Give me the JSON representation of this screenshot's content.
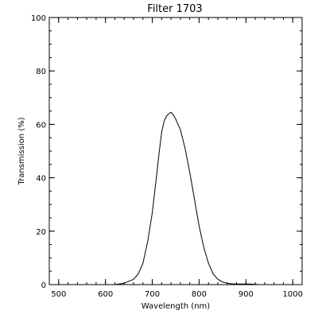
{
  "chart_data": {
    "type": "line",
    "title": "Filter 1703",
    "xlabel": "Wavelength (nm)",
    "ylabel": "Transmission (%)",
    "xlim": [
      480,
      1020
    ],
    "ylim": [
      0,
      100
    ],
    "x_ticks": [
      500,
      600,
      700,
      800,
      900,
      1000
    ],
    "y_ticks": [
      0,
      20,
      40,
      60,
      80,
      100
    ],
    "grid": false,
    "legend": "none",
    "line_color": "#000000",
    "series": [
      {
        "x": [
          620,
          640,
          660,
          670,
          680,
          690,
          700,
          710,
          715,
          720,
          725,
          730,
          735,
          740,
          745,
          750,
          755,
          760,
          770,
          780,
          790,
          800,
          810,
          820,
          830,
          840,
          850,
          860,
          870,
          880,
          890,
          900,
          910,
          920,
          930
        ],
        "y": [
          0,
          0.5,
          2,
          4,
          8,
          16,
          27,
          42,
          50,
          57,
          61,
          63,
          64,
          64.5,
          63.5,
          62,
          60,
          58,
          51,
          42,
          32,
          22,
          14,
          8,
          4,
          2,
          1,
          0.5,
          0.3,
          0.2,
          0.2,
          0.2,
          0.2,
          0.1,
          0
        ]
      }
    ]
  }
}
